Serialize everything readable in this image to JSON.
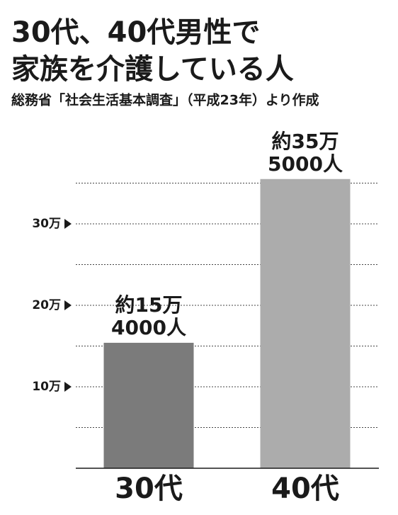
{
  "chart_data": {
    "type": "bar",
    "title": [
      "30代、40代男性で",
      "家族を介護している人"
    ],
    "subtitle": "総務省「社会生活基本調査」（平成23年）より作成",
    "categories": [
      "30代",
      "40代"
    ],
    "values": [
      15.4,
      35.5
    ],
    "value_labels": [
      [
        "約15万",
        "4000人"
      ],
      [
        "約35万",
        "5000人"
      ]
    ],
    "colors": [
      "#7b7b7b",
      "#acacac"
    ],
    "ylim": [
      0,
      36
    ],
    "yticks": [
      {
        "value": 5,
        "label": null
      },
      {
        "value": 10,
        "label": "10万"
      },
      {
        "value": 15,
        "label": null
      },
      {
        "value": 20,
        "label": "20万"
      },
      {
        "value": 25,
        "label": null
      },
      {
        "value": 30,
        "label": "30万"
      },
      {
        "value": 35,
        "label": null
      }
    ],
    "grid": true
  }
}
